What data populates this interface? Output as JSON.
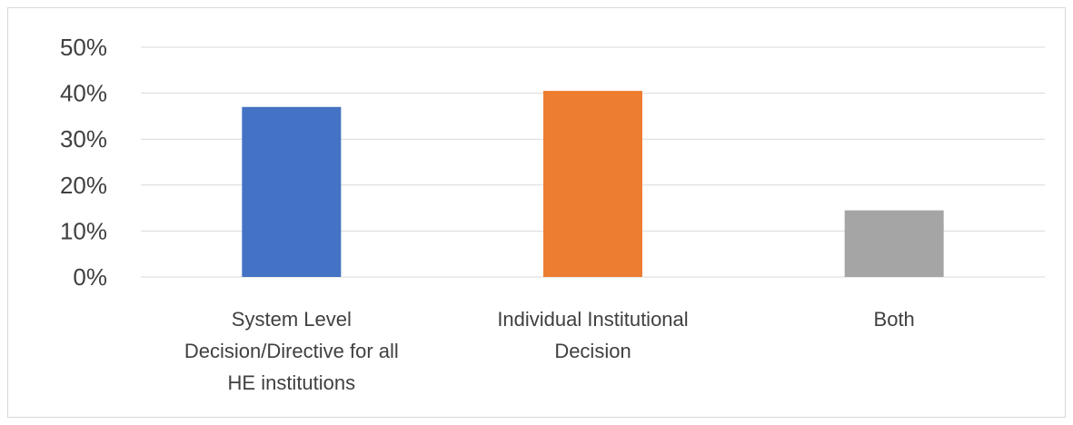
{
  "chart_data": {
    "type": "bar",
    "categories": [
      [
        "System Level",
        "Decision/Directive for all",
        "HE institutions"
      ],
      [
        "Individual Institutional",
        "Decision"
      ],
      [
        "Both"
      ]
    ],
    "values": [
      37,
      40.5,
      14.5
    ],
    "colors": [
      "#4472C4",
      "#ED7D31",
      "#A5A5A5"
    ],
    "yticks": [
      "0%",
      "10%",
      "20%",
      "30%",
      "40%",
      "50%"
    ],
    "ylim": [
      0,
      50
    ],
    "grid": true,
    "title": "",
    "xlabel": "",
    "ylabel": ""
  }
}
